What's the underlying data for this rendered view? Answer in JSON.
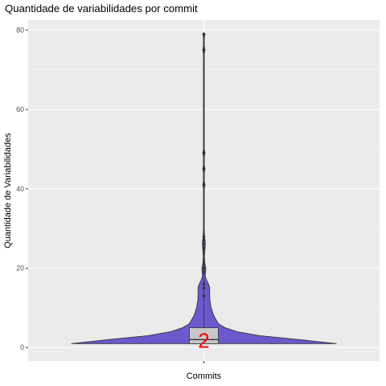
{
  "chart_data": {
    "type": "violin",
    "title": "Quantidade de variabilidades por commit",
    "xlabel": "Commits",
    "ylabel": "Quantidade de Variabilidades",
    "ylim": [
      -3.4,
      82.5
    ],
    "y_ticks": [
      0,
      20,
      40,
      60,
      80
    ],
    "x_ticks": [
      ""
    ],
    "grid": true,
    "fill_color": "#6a5acd",
    "box": {
      "min": 1,
      "q1": 1,
      "median": 2,
      "q3": 5,
      "max": 79
    },
    "median_label": "2",
    "outliers": [
      13,
      15,
      16,
      19,
      20,
      21,
      25,
      26,
      27,
      28,
      41,
      45,
      49,
      75,
      79
    ],
    "density_profile": [
      {
        "y": 1,
        "w": 1.0
      },
      {
        "y": 2,
        "w": 0.72
      },
      {
        "y": 3,
        "w": 0.42
      },
      {
        "y": 4,
        "w": 0.25
      },
      {
        "y": 5,
        "w": 0.16
      },
      {
        "y": 6,
        "w": 0.11
      },
      {
        "y": 8,
        "w": 0.075
      },
      {
        "y": 10,
        "w": 0.055
      },
      {
        "y": 12,
        "w": 0.045
      },
      {
        "y": 14,
        "w": 0.043
      },
      {
        "y": 15,
        "w": 0.045
      },
      {
        "y": 16,
        "w": 0.035
      },
      {
        "y": 17,
        "w": 0.02
      },
      {
        "y": 18,
        "w": 0.01
      },
      {
        "y": 19,
        "w": 0.012
      },
      {
        "y": 20,
        "w": 0.015
      },
      {
        "y": 21,
        "w": 0.008
      },
      {
        "y": 23,
        "w": 0.004
      },
      {
        "y": 25,
        "w": 0.009
      },
      {
        "y": 26.5,
        "w": 0.011
      },
      {
        "y": 28,
        "w": 0.005
      },
      {
        "y": 30,
        "w": 0.003
      },
      {
        "y": 40,
        "w": 0.003
      },
      {
        "y": 41,
        "w": 0.008
      },
      {
        "y": 42,
        "w": 0.003
      },
      {
        "y": 44,
        "w": 0.003
      },
      {
        "y": 45,
        "w": 0.008
      },
      {
        "y": 46,
        "w": 0.003
      },
      {
        "y": 48,
        "w": 0.003
      },
      {
        "y": 49,
        "w": 0.008
      },
      {
        "y": 50,
        "w": 0.003
      },
      {
        "y": 74,
        "w": 0.003
      },
      {
        "y": 75,
        "w": 0.008
      },
      {
        "y": 76,
        "w": 0.003
      },
      {
        "y": 78,
        "w": 0.003
      },
      {
        "y": 79,
        "w": 0.008
      }
    ]
  }
}
